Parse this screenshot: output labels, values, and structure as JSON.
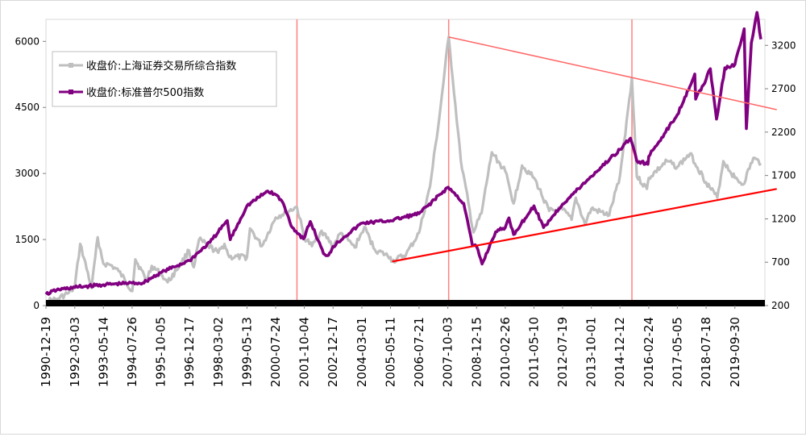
{
  "chart_data": {
    "type": "line",
    "title": "",
    "xlabel": "",
    "ylabel": "",
    "x_tick_labels": [
      "1990-12-19",
      "1992-03-03",
      "1993-05-14",
      "1994-07-26",
      "1995-10-05",
      "1996-12-17",
      "1998-03-02",
      "1999-05-13",
      "2000-07-24",
      "2001-10-04",
      "2002-12-17",
      "2004-03-01",
      "2005-05-11",
      "2006-07-21",
      "2007-10-03",
      "2008-12-15",
      "2010-02-26",
      "2011-05-10",
      "2012-07-19",
      "2013-10-01",
      "2014-12-12",
      "2016-02-24",
      "2017-05-05",
      "2018-07-18",
      "2019-09-30"
    ],
    "y_left": {
      "range": [
        0,
        6500
      ],
      "ticks": [
        "0",
        "1500",
        "3000",
        "4500",
        "6000"
      ]
    },
    "y_right": {
      "range": [
        200,
        3500
      ],
      "ticks": [
        "200",
        "700",
        "1200",
        "1700",
        "2200",
        "2700",
        "3200"
      ]
    },
    "legend": {
      "position": "top-left",
      "items": [
        {
          "label": "收盘价:上海证券交易所综合指数",
          "color": "#bfbfbf"
        },
        {
          "label": "收盘价:标准普尔500指数",
          "color": "#800080"
        }
      ]
    },
    "series": [
      {
        "name": "收盘价:上海证券交易所综合指数",
        "axis": "left",
        "color": "#bfbfbf",
        "points": [
          [
            "1990-12-19",
            100
          ],
          [
            "1991-06-01",
            140
          ],
          [
            "1991-12-01",
            290
          ],
          [
            "1992-03-01",
            400
          ],
          [
            "1992-05-25",
            1400
          ],
          [
            "1992-11-15",
            400
          ],
          [
            "1993-02-15",
            1550
          ],
          [
            "1993-05-14",
            950
          ],
          [
            "1993-09-01",
            920
          ],
          [
            "1994-01-03",
            780
          ],
          [
            "1994-07-28",
            330
          ],
          [
            "1994-09-13",
            1050
          ],
          [
            "1995-03-01",
            580
          ],
          [
            "1995-05-22",
            900
          ],
          [
            "1995-10-05",
            720
          ],
          [
            "1996-01-19",
            530
          ],
          [
            "1996-06-01",
            800
          ],
          [
            "1996-12-11",
            1250
          ],
          [
            "1997-02-20",
            870
          ],
          [
            "1997-05-12",
            1500
          ],
          [
            "1998-03-02",
            1200
          ],
          [
            "1998-06-04",
            1400
          ],
          [
            "1998-08-18",
            1100
          ],
          [
            "1999-05-13",
            1100
          ],
          [
            "1999-06-29",
            1750
          ],
          [
            "1999-12-27",
            1350
          ],
          [
            "2000-07-24",
            2000
          ],
          [
            "2001-06-14",
            2240
          ],
          [
            "2001-10-04",
            1550
          ],
          [
            "2002-01-29",
            1350
          ],
          [
            "2002-06-25",
            1700
          ],
          [
            "2002-12-17",
            1350
          ],
          [
            "2003-04-15",
            1650
          ],
          [
            "2003-11-13",
            1320
          ],
          [
            "2004-04-07",
            1780
          ],
          [
            "2004-09-13",
            1270
          ],
          [
            "2005-05-11",
            1100
          ],
          [
            "2005-06-06",
            1000
          ],
          [
            "2006-01-04",
            1160
          ],
          [
            "2006-07-21",
            1650
          ],
          [
            "2007-01-04",
            2700
          ],
          [
            "2007-05-29",
            4300
          ],
          [
            "2007-10-16",
            6100
          ],
          [
            "2008-04-18",
            3300
          ],
          [
            "2008-10-28",
            1660
          ],
          [
            "2009-03-01",
            2100
          ],
          [
            "2009-08-04",
            3480
          ],
          [
            "2010-02-26",
            3050
          ],
          [
            "2010-07-02",
            2320
          ],
          [
            "2010-11-08",
            3180
          ],
          [
            "2011-05-10",
            2900
          ],
          [
            "2011-12-28",
            2150
          ],
          [
            "2012-07-19",
            2180
          ],
          [
            "2012-12-04",
            1950
          ],
          [
            "2013-02-06",
            2450
          ],
          [
            "2013-06-25",
            1850
          ],
          [
            "2013-10-01",
            2200
          ],
          [
            "2014-07-01",
            2050
          ],
          [
            "2014-12-12",
            2950
          ],
          [
            "2015-06-12",
            5170
          ],
          [
            "2015-08-26",
            2930
          ],
          [
            "2016-01-27",
            2650
          ],
          [
            "2016-02-24",
            2900
          ],
          [
            "2016-11-29",
            3280
          ],
          [
            "2017-05-05",
            3150
          ],
          [
            "2017-11-13",
            3450
          ],
          [
            "2018-07-18",
            2800
          ],
          [
            "2019-01-04",
            2450
          ],
          [
            "2019-04-08",
            3280
          ],
          [
            "2019-09-30",
            2900
          ],
          [
            "2020-02-03",
            2750
          ],
          [
            "2020-07-07",
            3350
          ],
          [
            "2020-10-31",
            3230
          ]
        ]
      },
      {
        "name": "收盘价:标准普尔500指数",
        "axis": "right",
        "color": "#800080",
        "points": [
          [
            "1990-12-19",
            330
          ],
          [
            "1991-06-01",
            380
          ],
          [
            "1992-03-03",
            410
          ],
          [
            "1993-05-14",
            440
          ],
          [
            "1994-07-26",
            460
          ],
          [
            "1995-01-03",
            460
          ],
          [
            "1995-10-05",
            580
          ],
          [
            "1996-12-17",
            720
          ],
          [
            "1997-10-27",
            930
          ],
          [
            "1998-03-02",
            1050
          ],
          [
            "1998-07-17",
            1180
          ],
          [
            "1998-08-31",
            960
          ],
          [
            "1999-05-13",
            1350
          ],
          [
            "2000-03-24",
            1520
          ],
          [
            "2000-07-24",
            1480
          ],
          [
            "2000-11-01",
            1400
          ],
          [
            "2001-04-04",
            1100
          ],
          [
            "2001-09-21",
            970
          ],
          [
            "2002-01-04",
            1170
          ],
          [
            "2002-07-23",
            800
          ],
          [
            "2002-10-09",
            780
          ],
          [
            "2002-12-17",
            880
          ],
          [
            "2003-06-01",
            990
          ],
          [
            "2004-03-01",
            1150
          ],
          [
            "2005-05-11",
            1180
          ],
          [
            "2006-07-21",
            1260
          ],
          [
            "2007-10-09",
            1565
          ],
          [
            "2008-06-01",
            1380
          ],
          [
            "2008-10-10",
            900
          ],
          [
            "2008-12-15",
            880
          ],
          [
            "2009-03-09",
            680
          ],
          [
            "2009-10-01",
            1050
          ],
          [
            "2010-02-26",
            1100
          ],
          [
            "2010-04-23",
            1210
          ],
          [
            "2010-07-02",
            1020
          ],
          [
            "2011-05-10",
            1350
          ],
          [
            "2011-10-03",
            1100
          ],
          [
            "2012-07-19",
            1370
          ],
          [
            "2013-10-01",
            1690
          ],
          [
            "2014-12-12",
            2000
          ],
          [
            "2015-05-21",
            2130
          ],
          [
            "2015-08-25",
            1870
          ],
          [
            "2016-02-11",
            1830
          ],
          [
            "2016-02-24",
            1920
          ],
          [
            "2017-05-05",
            2400
          ],
          [
            "2018-01-26",
            2870
          ],
          [
            "2018-02-08",
            2580
          ],
          [
            "2018-07-18",
            2810
          ],
          [
            "2018-09-20",
            2930
          ],
          [
            "2018-12-24",
            2350
          ],
          [
            "2019-04-30",
            2940
          ],
          [
            "2019-09-30",
            2980
          ],
          [
            "2020-02-19",
            3390
          ],
          [
            "2020-03-23",
            2240
          ],
          [
            "2020-06-08",
            3230
          ],
          [
            "2020-09-02",
            3580
          ],
          [
            "2020-10-31",
            3270
          ]
        ]
      }
    ],
    "reference_lines": {
      "vertical_dates": [
        "2001-06-14",
        "2007-10-16",
        "2015-06-12"
      ],
      "trend_lines": [
        {
          "axis": "left",
          "color": "#ff6666",
          "from": [
            "2007-10-16",
            6100
          ],
          "to": [
            "2021-06-30",
            4450
          ]
        },
        {
          "axis": "left",
          "color": "#ff0000",
          "from": [
            "2005-06-06",
            1000
          ],
          "to": [
            "2021-06-30",
            2650
          ]
        }
      ]
    }
  }
}
